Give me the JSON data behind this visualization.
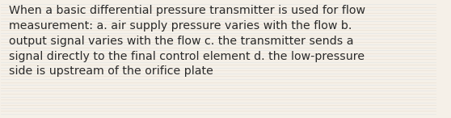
{
  "text": "When a basic differential pressure transmitter is used for flow\nmeasurement: a. air supply pressure varies with the flow b.\noutput signal varies with the flow c. the transmitter sends a\nsignal directly to the final control element d. the low-pressure\nside is upstream of the orifice plate",
  "background_color": "#f5f0e8",
  "text_color": "#2a2a2a",
  "font_size": 10.2,
  "fig_width": 5.58,
  "fig_height": 1.46,
  "num_lines": 40
}
